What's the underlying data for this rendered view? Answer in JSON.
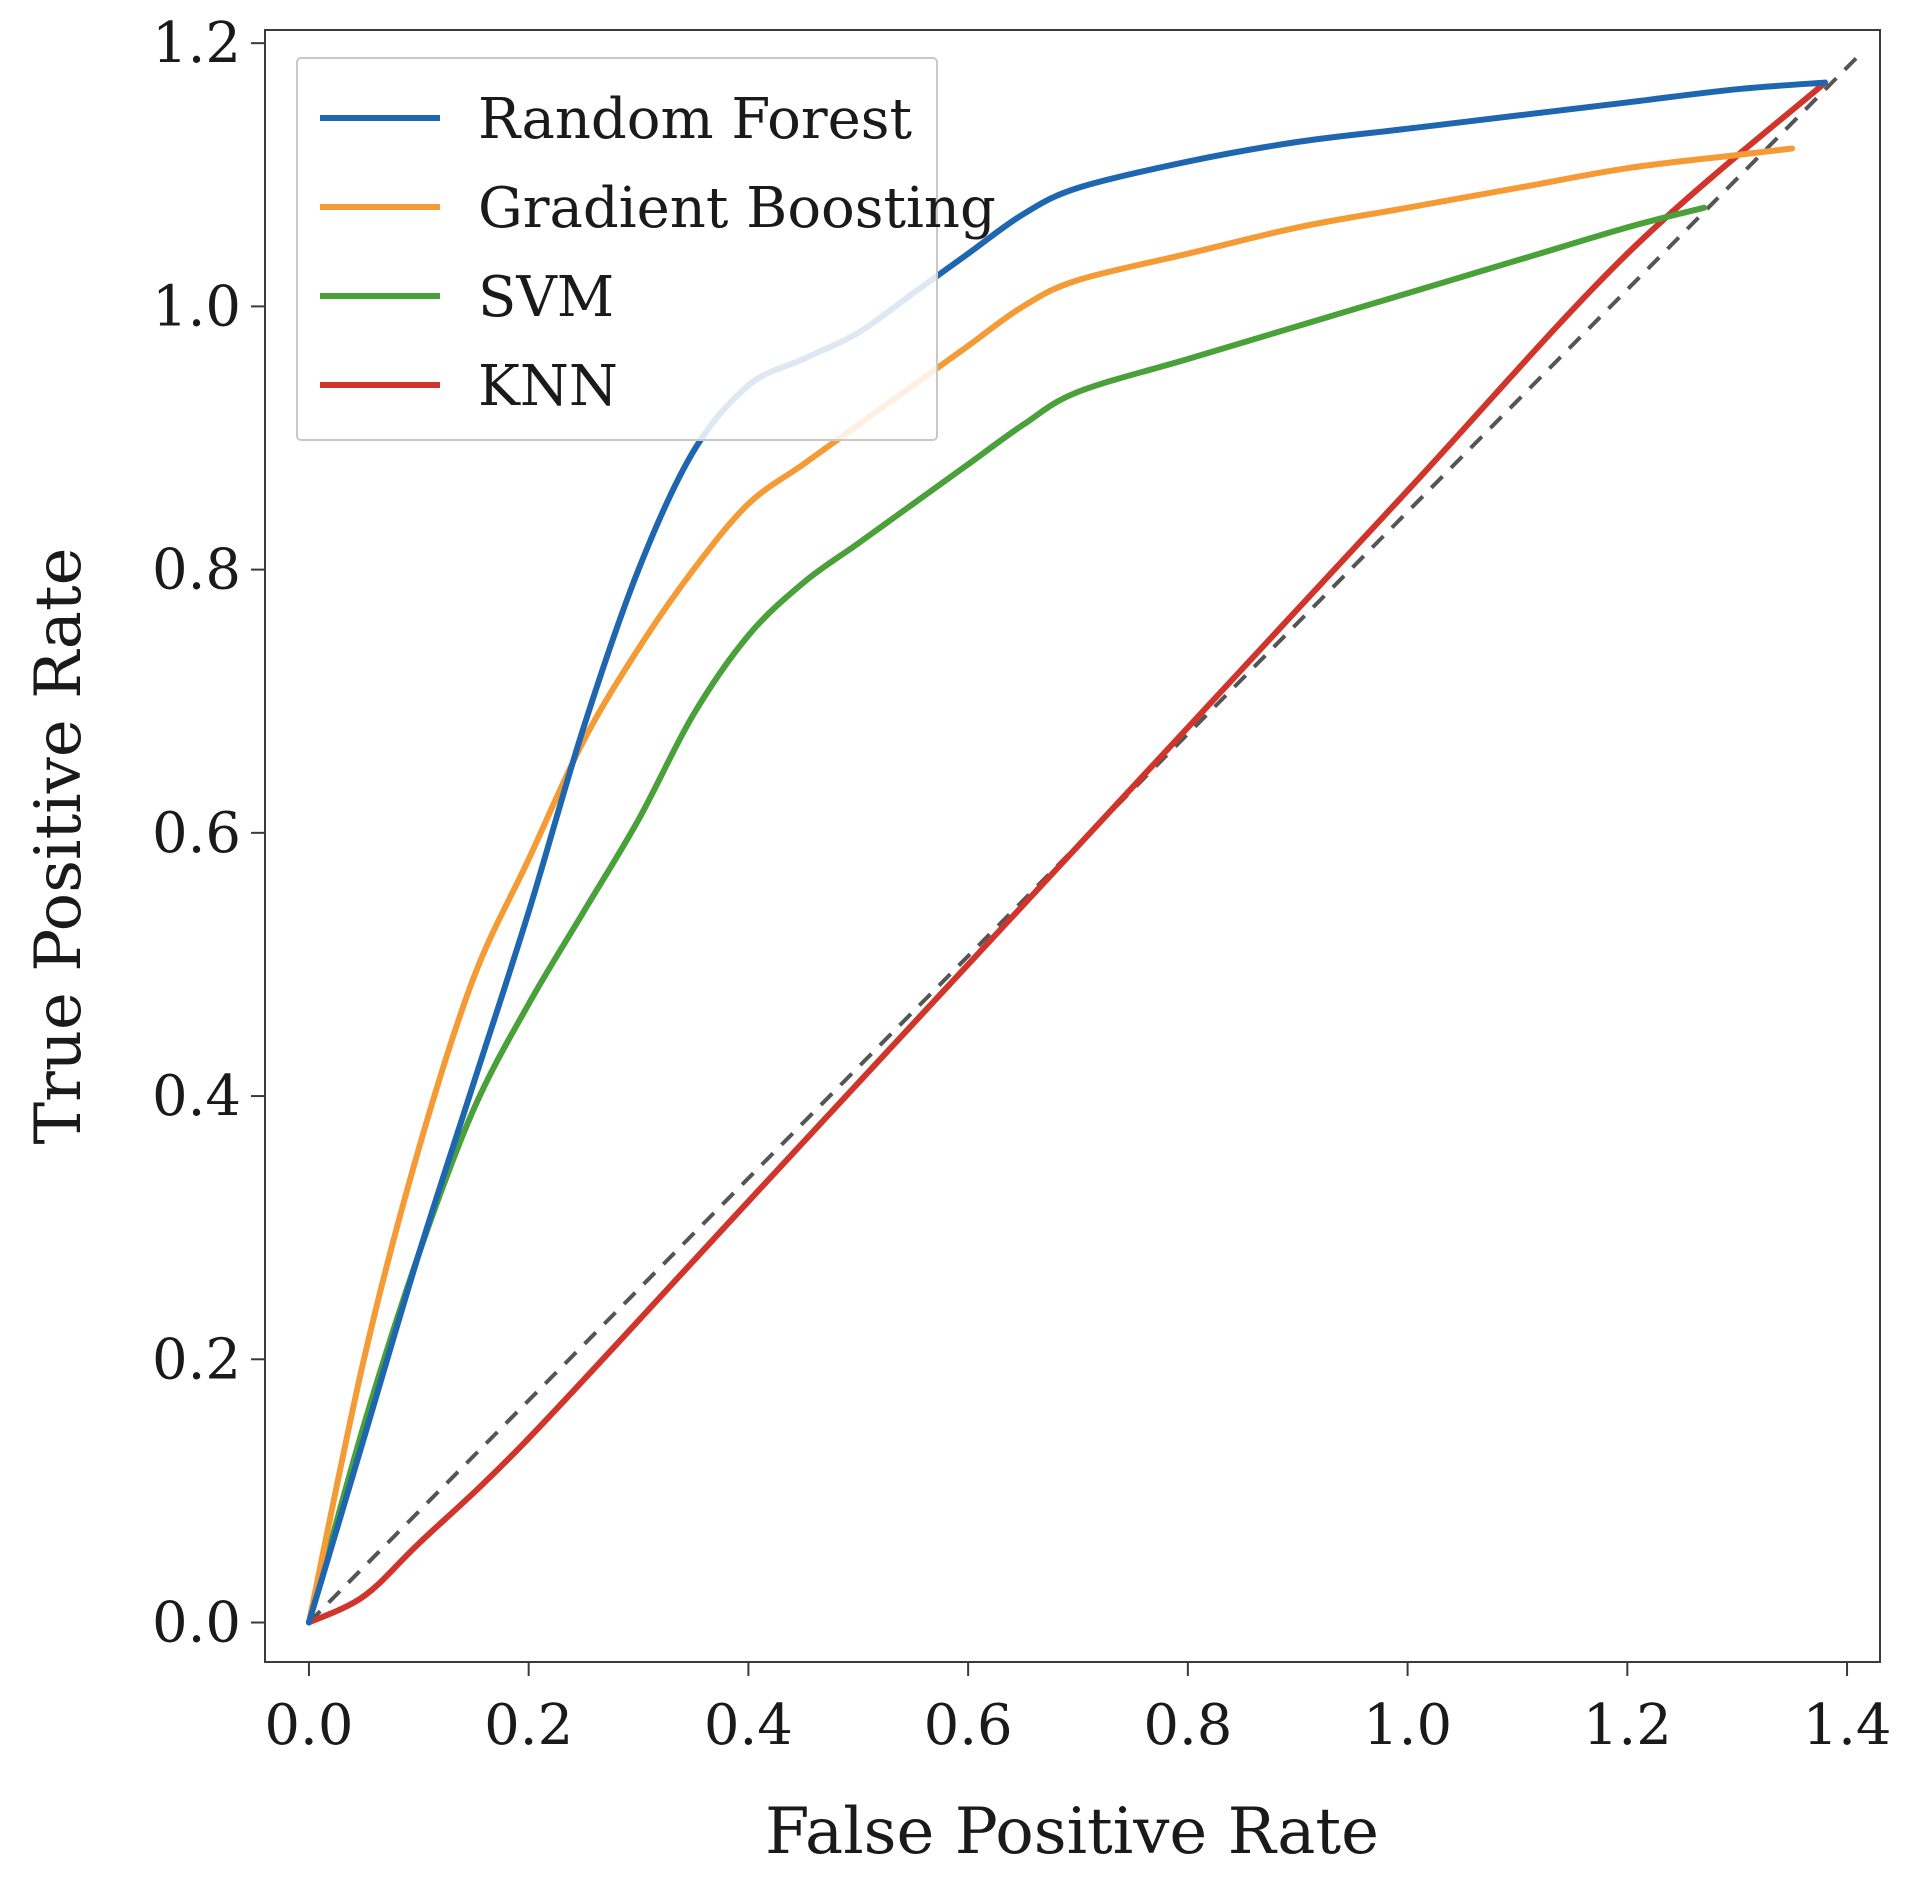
{
  "chart_data": {
    "type": "line",
    "xlabel": "False Positive Rate",
    "ylabel": "True Positive Rate",
    "xlim": [
      -0.04,
      1.43
    ],
    "ylim": [
      -0.03,
      1.21
    ],
    "xticks": [
      {
        "v": 0.0,
        "label": "0.0"
      },
      {
        "v": 0.2,
        "label": "0.2"
      },
      {
        "v": 0.4,
        "label": "0.4"
      },
      {
        "v": 0.6,
        "label": "0.6"
      },
      {
        "v": 0.8,
        "label": "0.8"
      },
      {
        "v": 1.0,
        "label": "1.0"
      },
      {
        "v": 1.2,
        "label": "1.2"
      },
      {
        "v": 1.4,
        "label": "1.4"
      }
    ],
    "yticks": [
      {
        "v": 0.0,
        "label": "0.0"
      },
      {
        "v": 0.2,
        "label": "0.2"
      },
      {
        "v": 0.4,
        "label": "0.4"
      },
      {
        "v": 0.6,
        "label": "0.6"
      },
      {
        "v": 0.8,
        "label": "0.8"
      },
      {
        "v": 1.0,
        "label": "1.0"
      },
      {
        "v": 1.2,
        "label": "1.2"
      }
    ],
    "grid": false,
    "legend_position": "top-left",
    "reference_line": {
      "style": "dashed",
      "color": "#555555",
      "x": [
        0.0,
        1.41
      ],
      "y": [
        0.0,
        1.19
      ]
    },
    "series": [
      {
        "name": "Random Forest",
        "color": "#1f66b0",
        "x": [
          0.0,
          0.05,
          0.1,
          0.15,
          0.2,
          0.25,
          0.3,
          0.35,
          0.4,
          0.45,
          0.5,
          0.55,
          0.6,
          0.65,
          0.7,
          0.8,
          0.9,
          1.0,
          1.1,
          1.2,
          1.3,
          1.38
        ],
        "y": [
          0.0,
          0.14,
          0.28,
          0.41,
          0.54,
          0.68,
          0.8,
          0.89,
          0.94,
          0.96,
          0.98,
          1.01,
          1.04,
          1.07,
          1.09,
          1.11,
          1.125,
          1.135,
          1.145,
          1.155,
          1.165,
          1.17
        ]
      },
      {
        "name": "Gradient Boosting",
        "color": "#f59b35",
        "x": [
          0.0,
          0.05,
          0.1,
          0.15,
          0.2,
          0.25,
          0.3,
          0.35,
          0.4,
          0.45,
          0.5,
          0.55,
          0.6,
          0.65,
          0.7,
          0.8,
          0.9,
          1.0,
          1.1,
          1.2,
          1.3,
          1.35
        ],
        "y": [
          0.0,
          0.2,
          0.36,
          0.49,
          0.58,
          0.67,
          0.74,
          0.8,
          0.85,
          0.88,
          0.91,
          0.94,
          0.97,
          1.0,
          1.02,
          1.04,
          1.06,
          1.075,
          1.09,
          1.105,
          1.115,
          1.12
        ]
      },
      {
        "name": "SVM",
        "color": "#4aa13a",
        "x": [
          0.0,
          0.05,
          0.1,
          0.15,
          0.2,
          0.25,
          0.3,
          0.35,
          0.4,
          0.45,
          0.5,
          0.55,
          0.6,
          0.65,
          0.7,
          0.8,
          0.9,
          1.0,
          1.1,
          1.2,
          1.27
        ],
        "y": [
          0.0,
          0.15,
          0.28,
          0.39,
          0.47,
          0.54,
          0.61,
          0.69,
          0.75,
          0.79,
          0.82,
          0.85,
          0.88,
          0.91,
          0.935,
          0.96,
          0.985,
          1.01,
          1.035,
          1.06,
          1.075
        ]
      },
      {
        "name": "KNN",
        "color": "#d1342a",
        "x": [
          0.0,
          0.05,
          0.1,
          0.2,
          0.4,
          0.6,
          0.8,
          1.0,
          1.2,
          1.38
        ],
        "y": [
          0.0,
          0.02,
          0.06,
          0.14,
          0.32,
          0.5,
          0.68,
          0.86,
          1.04,
          1.17
        ]
      }
    ]
  }
}
